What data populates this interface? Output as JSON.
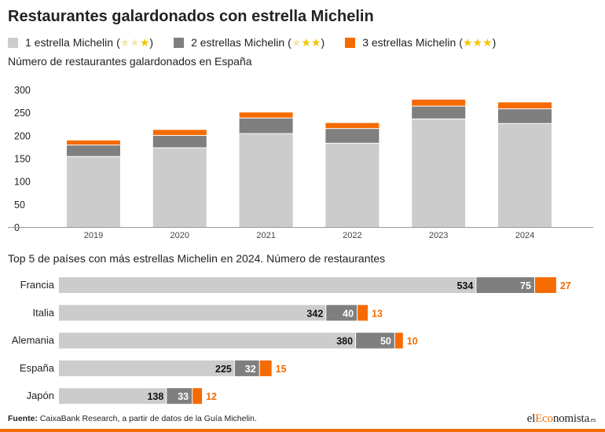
{
  "title": "Restaurantes galardonados con estrella Michelin",
  "colors": {
    "one_star": "#cccccc",
    "two_star": "#7f7f7f",
    "three_star": "#f56b00",
    "star_gold": "#f5c400",
    "star_faded": "#f4e6b0"
  },
  "legend": [
    {
      "label": "1 estrella Michelin",
      "color": "#cccccc",
      "stars_filled": 1
    },
    {
      "label": "2 estrellas Michelin",
      "color": "#7f7f7f",
      "stars_filled": 2
    },
    {
      "label": "3 estrellas Michelin",
      "color": "#f56b00",
      "stars_filled": 3
    }
  ],
  "legend_icon": "star-icon",
  "chart1_subtitle": "Número de restaurantes galardonados en España",
  "chart2_subtitle": "Top 5 de países con más estrellas Michelin en 2024. Número de restaurantes",
  "chart_data": [
    {
      "type": "bar",
      "stacked": true,
      "title": "Número de restaurantes galardonados en España",
      "categories": [
        "2019",
        "2020",
        "2021",
        "2022",
        "2023",
        "2024"
      ],
      "series": [
        {
          "name": "1 estrella Michelin",
          "values": [
            153,
            172,
            203,
            182,
            235,
            225
          ]
        },
        {
          "name": "2 estrellas Michelin",
          "values": [
            25,
            27,
            34,
            32,
            28,
            32
          ]
        },
        {
          "name": "3 estrellas Michelin",
          "values": [
            11,
            13,
            13,
            13,
            15,
            15
          ]
        }
      ],
      "yticks": [
        0,
        50,
        100,
        150,
        200,
        250,
        300
      ],
      "ylim": [
        0,
        300
      ],
      "grid": false,
      "legend": "top-left"
    },
    {
      "type": "bar",
      "orientation": "horizontal",
      "stacked": true,
      "title": "Top 5 de países con más estrellas Michelin en 2024. Número de restaurantes",
      "categories": [
        "Francia",
        "Italia",
        "Alemania",
        "España",
        "Japón"
      ],
      "series": [
        {
          "name": "1 estrella Michelin",
          "values": [
            534,
            342,
            380,
            225,
            138
          ]
        },
        {
          "name": "2 estrellas Michelin",
          "values": [
            75,
            40,
            50,
            32,
            33
          ]
        },
        {
          "name": "3 estrellas Michelin",
          "values": [
            27,
            13,
            10,
            15,
            12
          ]
        }
      ],
      "data_labels": true
    }
  ],
  "footer": {
    "source_label": "Fuente:",
    "source_text": " CaixaBank Research, a partir de datos de la Guía Michelin."
  },
  "logo": {
    "part1": "el",
    "part2": "Eco",
    "part3": "nomista",
    "part4": ".es"
  }
}
